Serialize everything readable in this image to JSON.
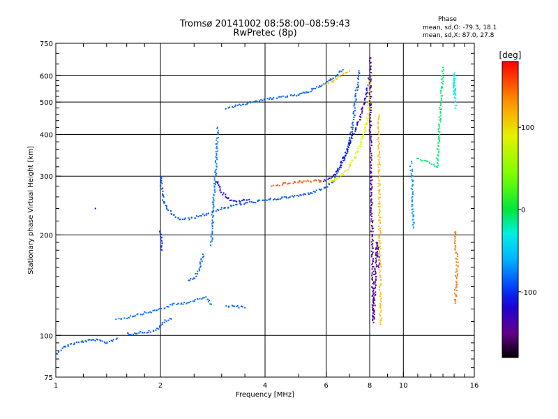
{
  "chart_data": {
    "type": "scatter",
    "title": "Tromsø 20141002 08:58:00–08:59:43",
    "subtitle": "RwPretec (8p)",
    "xlabel": "Frequency [MHz]",
    "ylabel": "Stationary phase Virtual Height [km]",
    "x_scale": "log",
    "y_scale": "log",
    "xlim": [
      1,
      16
    ],
    "ylim": [
      75,
      750
    ],
    "x_ticks": [
      1,
      2,
      4,
      6,
      8,
      10,
      16
    ],
    "x_tick_labels": [
      "1",
      "2",
      "4",
      "6",
      "8",
      "10",
      "16"
    ],
    "y_ticks": [
      75,
      100,
      200,
      300,
      400,
      500,
      600,
      750
    ],
    "y_tick_labels": [
      "75",
      "100",
      "200",
      "300",
      "400",
      "500",
      "600",
      "750"
    ],
    "grid": true,
    "phase_stats": {
      "title": "Phase",
      "o_mode": "mean, sd,O: -79.3, 18.1",
      "x_mode": "mean, sd,X: 87.0, 27.8"
    },
    "colorbar": {
      "label": "[deg]",
      "range": [
        -180,
        180
      ],
      "ticks": [
        100,
        0,
        -100
      ],
      "tick_labels": [
        "100",
        "0",
        "-100"
      ]
    },
    "traces": [
      {
        "points": [
          [
            1.0,
            88
          ],
          [
            1.05,
            92
          ],
          [
            1.1,
            94
          ],
          [
            1.2,
            96
          ],
          [
            1.3,
            97
          ],
          [
            1.4,
            95
          ],
          [
            1.5,
            98
          ]
        ],
        "phase": -88
      },
      {
        "points": [
          [
            1.5,
            112
          ],
          [
            1.6,
            113
          ],
          [
            1.75,
            116
          ],
          [
            1.9,
            118
          ],
          [
            2.0,
            120
          ],
          [
            2.1,
            122
          ],
          [
            2.2,
            124
          ],
          [
            2.35,
            125
          ],
          [
            2.5,
            127
          ],
          [
            2.7,
            130
          ],
          [
            2.8,
            124
          ]
        ],
        "phase": -80
      },
      {
        "points": [
          [
            1.6,
            101
          ],
          [
            1.75,
            102
          ],
          [
            1.9,
            103
          ],
          [
            2.0,
            106
          ],
          [
            2.05,
            110
          ],
          [
            2.15,
            112
          ]
        ],
        "phase": -86
      },
      {
        "points": [
          [
            2.4,
            146
          ],
          [
            2.5,
            148
          ],
          [
            2.6,
            160
          ],
          [
            2.65,
            175
          ]
        ],
        "phase": -86
      },
      {
        "points": [
          [
            2.0,
            300
          ],
          [
            2.02,
            270
          ],
          [
            2.05,
            250
          ],
          [
            2.1,
            238
          ],
          [
            2.2,
            228
          ],
          [
            2.3,
            222
          ],
          [
            2.45,
            224
          ],
          [
            2.6,
            228
          ],
          [
            2.75,
            232
          ]
        ],
        "phase": -90
      },
      {
        "points": [
          [
            2.0,
            205
          ],
          [
            2.01,
            190
          ],
          [
            2.02,
            180
          ]
        ],
        "phase": -100
      },
      {
        "points": [
          [
            2.8,
            185
          ],
          [
            2.82,
            220
          ],
          [
            2.85,
            260
          ],
          [
            2.88,
            300
          ],
          [
            2.9,
            350
          ],
          [
            2.92,
            420
          ]
        ],
        "phase": -78
      },
      {
        "points": [
          [
            2.8,
            235
          ],
          [
            3.0,
            240
          ],
          [
            3.3,
            246
          ],
          [
            3.6,
            250
          ],
          [
            4.0,
            254
          ],
          [
            4.5,
            258
          ],
          [
            5.0,
            262
          ],
          [
            5.5,
            268
          ],
          [
            6.0,
            278
          ],
          [
            6.3,
            290
          ],
          [
            6.5,
            310
          ],
          [
            6.8,
            340
          ],
          [
            7.0,
            380
          ],
          [
            7.2,
            450
          ],
          [
            7.35,
            550
          ],
          [
            7.45,
            620
          ]
        ],
        "phase": -88
      },
      {
        "points": [
          [
            2.9,
            290
          ],
          [
            3.0,
            270
          ],
          [
            3.1,
            258
          ],
          [
            3.3,
            252
          ],
          [
            3.6,
            255
          ]
        ],
        "phase": -113
      },
      {
        "points": [
          [
            5.8,
            290
          ],
          [
            6.0,
            292
          ],
          [
            6.3,
            300
          ],
          [
            6.6,
            325
          ],
          [
            6.9,
            360
          ],
          [
            7.2,
            400
          ],
          [
            7.5,
            450
          ],
          [
            7.8,
            520
          ],
          [
            8.0,
            600
          ]
        ],
        "phase": -118
      },
      {
        "points": [
          [
            4.2,
            280
          ],
          [
            4.6,
            285
          ],
          [
            5.0,
            288
          ],
          [
            5.4,
            290
          ],
          [
            5.8,
            290
          ]
        ],
        "phase": 150
      },
      {
        "points": [
          [
            6.1,
            287
          ],
          [
            6.6,
            300
          ],
          [
            7.0,
            320
          ],
          [
            7.4,
            355
          ],
          [
            7.7,
            400
          ],
          [
            7.9,
            450
          ],
          [
            8.0,
            520
          ],
          [
            8.02,
            600
          ]
        ],
        "phase": 85
      },
      {
        "points": [
          [
            3.1,
            478
          ],
          [
            3.4,
            490
          ],
          [
            3.8,
            505
          ],
          [
            4.3,
            515
          ],
          [
            4.9,
            525
          ],
          [
            5.4,
            540
          ],
          [
            5.9,
            565
          ],
          [
            6.3,
            590
          ],
          [
            6.7,
            625
          ]
        ],
        "phase": -85
      },
      {
        "points": [
          [
            6.0,
            565
          ],
          [
            6.4,
            585
          ],
          [
            6.8,
            610
          ],
          [
            7.0,
            620
          ]
        ],
        "phase": 110
      },
      {
        "points": [
          [
            3.1,
            122
          ],
          [
            3.3,
            122
          ],
          [
            3.5,
            121
          ]
        ],
        "phase": -85
      },
      {
        "points": [
          [
            8.03,
            680
          ],
          [
            8.05,
            350
          ],
          [
            8.1,
            260
          ],
          [
            8.2,
            110
          ],
          [
            8.4,
            190
          ],
          [
            8.5,
            160
          ]
        ],
        "phase": -140
      },
      {
        "points": [
          [
            8.5,
            460
          ],
          [
            8.5,
            370
          ],
          [
            8.6,
            108
          ]
        ],
        "phase": 110
      },
      {
        "points": [
          [
            10.5,
            330
          ],
          [
            10.6,
            300
          ],
          [
            10.6,
            270
          ],
          [
            10.7,
            210
          ]
        ],
        "phase": -70
      },
      {
        "points": [
          [
            11.0,
            340
          ],
          [
            12.5,
            320
          ],
          [
            13.0,
            635
          ]
        ],
        "phase": -10
      },
      {
        "points": [
          [
            14.0,
            560
          ],
          [
            14.0,
            530
          ],
          [
            14.0,
            610
          ],
          [
            14.1,
            480
          ]
        ],
        "phase": -30
      },
      {
        "points": [
          [
            14.1,
            205
          ],
          [
            14.1,
            190
          ],
          [
            14.3,
            165
          ],
          [
            14.1,
            130
          ],
          [
            14.1,
            125
          ]
        ],
        "phase": 140
      },
      {
        "points": [
          [
            1.3,
            240
          ]
        ],
        "phase": -120
      }
    ]
  }
}
